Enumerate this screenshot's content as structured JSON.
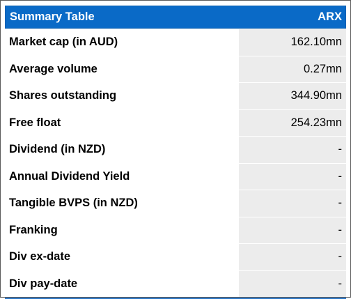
{
  "table": {
    "title": "Summary Table",
    "ticker": "ARX",
    "rows": [
      {
        "label": "Market cap (in AUD)",
        "value": "162.10mn"
      },
      {
        "label": "Average volume",
        "value": "0.27mn"
      },
      {
        "label": "Shares outstanding",
        "value": "344.90mn"
      },
      {
        "label": "Free float",
        "value": "254.23mn"
      },
      {
        "label": "Dividend (in NZD)",
        "value": "-"
      },
      {
        "label": "Annual Dividend Yield",
        "value": "-"
      },
      {
        "label": "Tangible BVPS (in NZD)",
        "value": "-"
      },
      {
        "label": "Franking",
        "value": "-"
      },
      {
        "label": "Div ex-date",
        "value": "-"
      },
      {
        "label": "Div pay-date",
        "value": "-"
      }
    ]
  },
  "colors": {
    "header_bg": "#0a6ac7",
    "value_cell_bg": "#ececec",
    "border": "#5a5a5a",
    "bottom_rule": "#2e78c8"
  }
}
